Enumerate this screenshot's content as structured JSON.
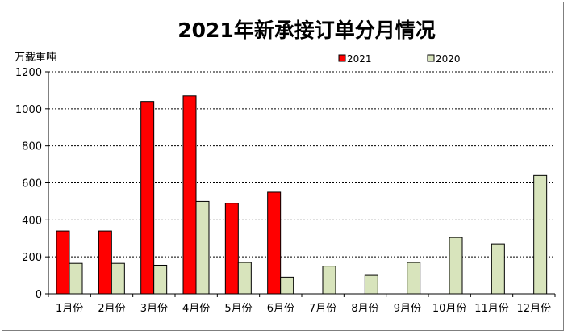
{
  "chart_data": {
    "type": "bar",
    "title": "2021年新承接订单分月情况",
    "ylabel": "万载重吨",
    "xlabel": "",
    "ylim": [
      0,
      1200
    ],
    "yticks": [
      0,
      200,
      400,
      600,
      800,
      1000,
      1200
    ],
    "grid": true,
    "legend_position": "top",
    "categories": [
      "1月份",
      "2月份",
      "3月份",
      "4月份",
      "5月份",
      "6月份",
      "7月份",
      "8月份",
      "9月份",
      "10月份",
      "11月份",
      "12月份"
    ],
    "series": [
      {
        "name": "2021",
        "color": "#ff0000",
        "values": [
          340,
          340,
          1040,
          1070,
          490,
          550,
          null,
          null,
          null,
          null,
          null,
          null
        ]
      },
      {
        "name": "2020",
        "color": "#d8e4bc",
        "values": [
          165,
          165,
          155,
          500,
          170,
          90,
          150,
          100,
          170,
          305,
          270,
          640
        ]
      }
    ]
  }
}
